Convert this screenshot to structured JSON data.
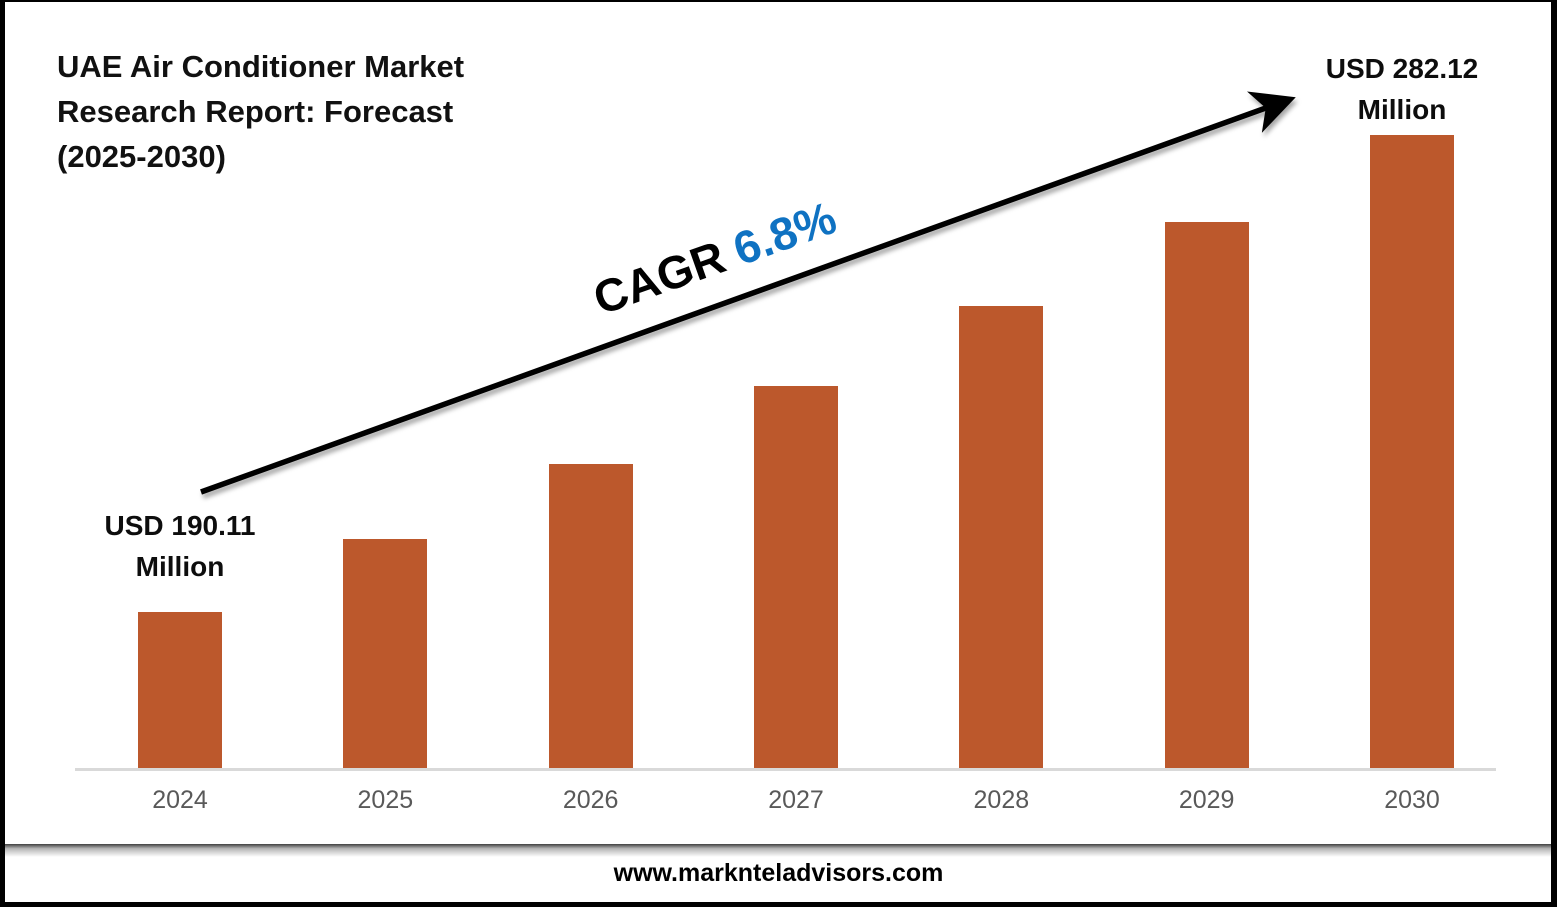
{
  "title": {
    "lines": [
      "UAE Air Conditioner Market",
      "Research Report: Forecast",
      "(2025-2030)"
    ]
  },
  "chart_data": {
    "type": "bar",
    "title": "UAE Air Conditioner Market Research Report: Forecast (2025-2030)",
    "categories": [
      "2024",
      "2025",
      "2026",
      "2027",
      "2028",
      "2029",
      "2030"
    ],
    "values": [
      190.11,
      203.04,
      216.85,
      231.59,
      247.34,
      264.16,
      282.12
    ],
    "unit": "USD Million",
    "xlabel": "",
    "ylabel": "",
    "grid": false,
    "legend": "none",
    "labeled_points": {
      "2024": "USD 190.11 Million",
      "2030": "USD 282.12 Million"
    },
    "cagr_annotation": "CAGR 6.8%"
  },
  "annotations": {
    "start_label": {
      "line1": "USD 190.11",
      "line2": "Million"
    },
    "end_label": {
      "line1": "USD 282.12",
      "line2": "Million"
    },
    "cagr": {
      "prefix": "CAGR ",
      "value": "6.8%"
    }
  },
  "footer": {
    "website": "www.marknteladvisors.com"
  },
  "colors": {
    "bar": "#bc582c",
    "axis_line": "#d9d9d9",
    "tick_label": "#595959",
    "cagr_value_blue": "#0f72c2",
    "arrow": "#000000",
    "text": "#111111"
  }
}
